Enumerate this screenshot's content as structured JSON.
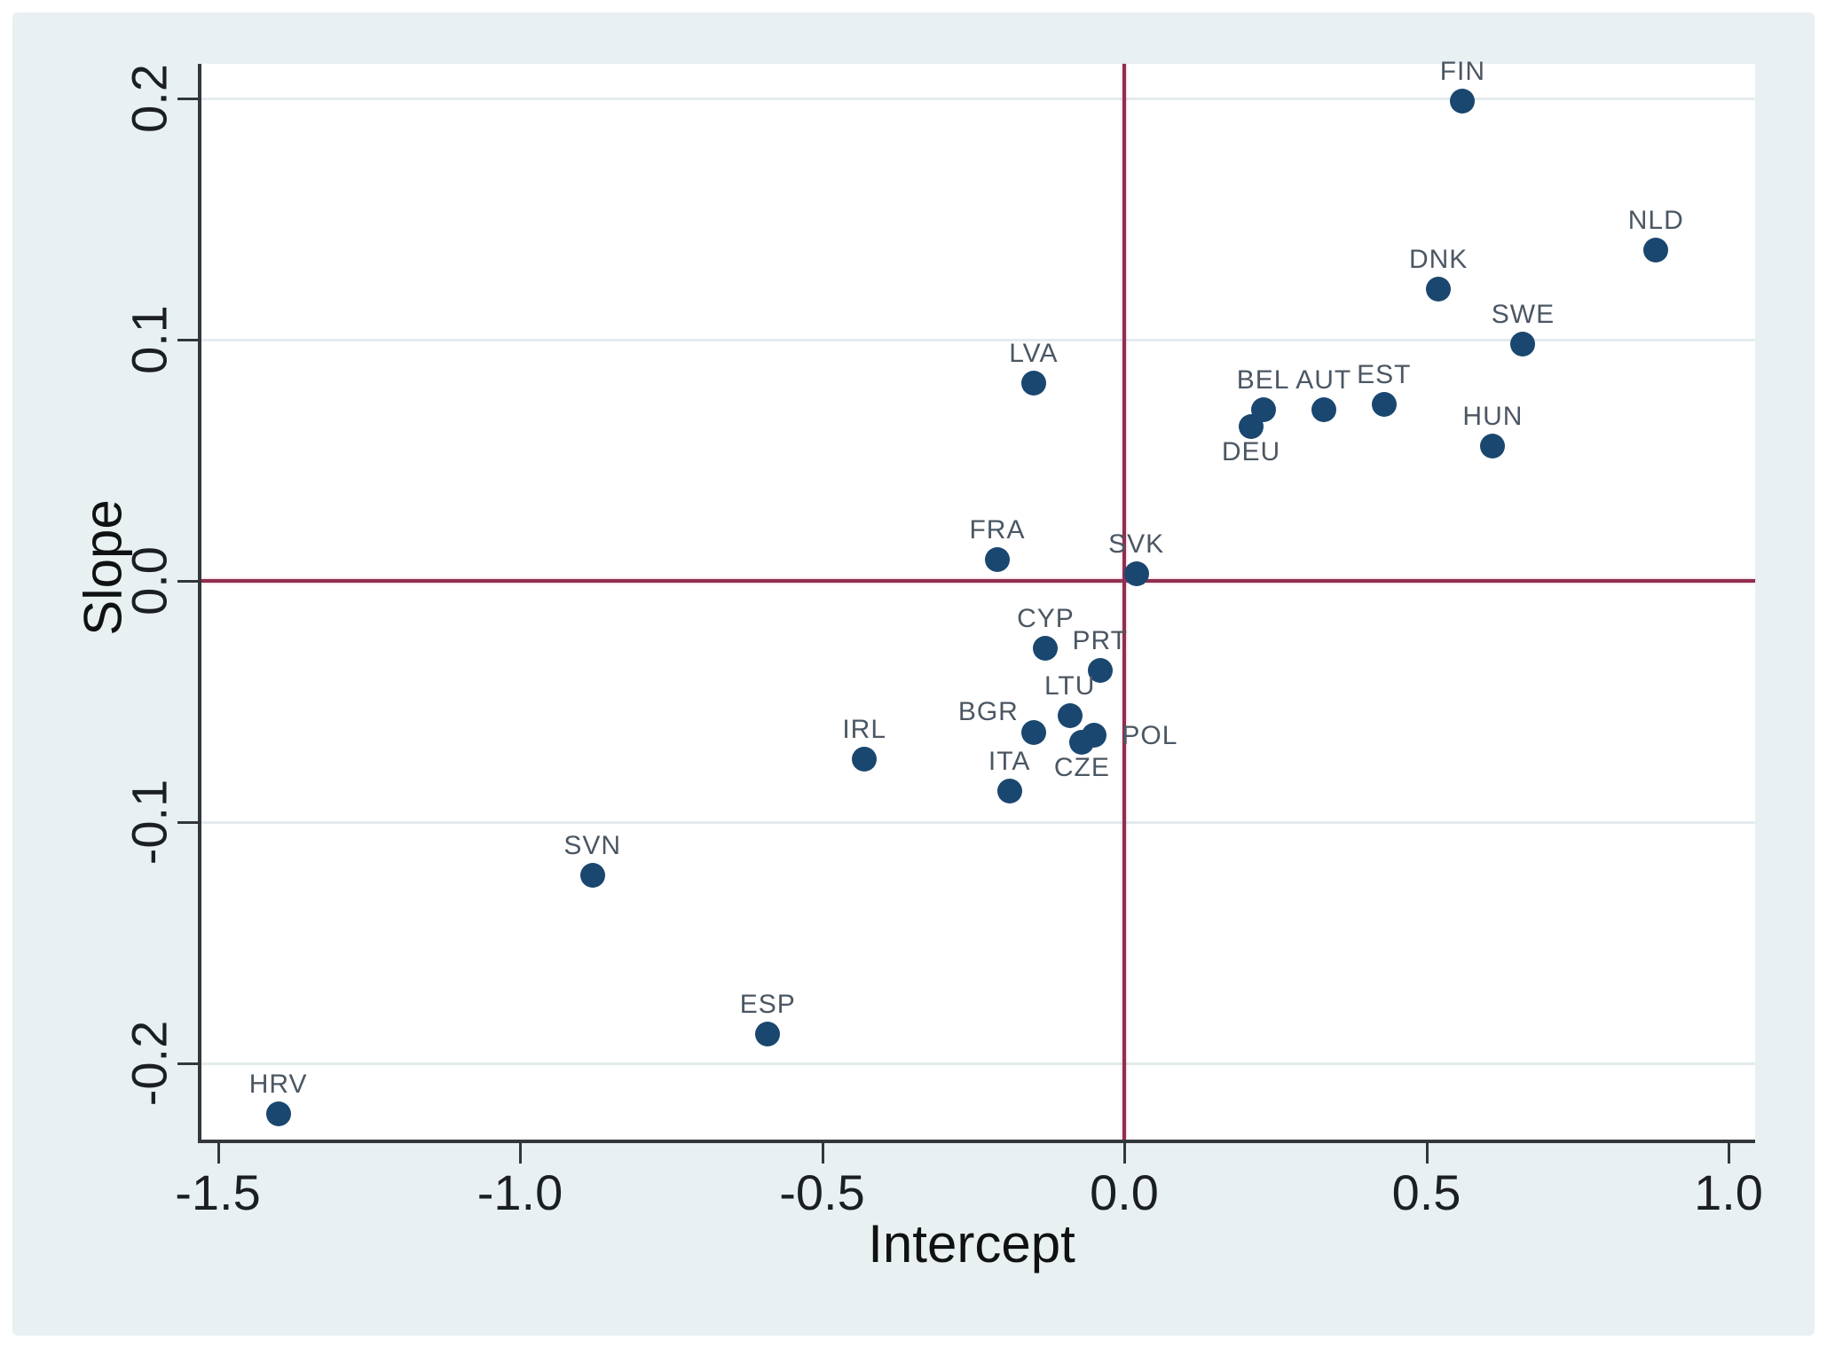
{
  "figure": {
    "colors": {
      "page_bg": "#ffffff",
      "panel_bg": "#e9f0f2",
      "plot_bg": "#ffffff",
      "gridline": "#e3ebee",
      "axis_line": "#32373b",
      "tick_label": "#1c1f22",
      "axis_title": "#0f1112",
      "marker": "#1a476f",
      "point_label": "#4b5763",
      "reference_line": "#8f2f4f"
    }
  },
  "chart_data": {
    "type": "scatter",
    "title": "",
    "xlabel": "Intercept",
    "ylabel": "Slope",
    "xlim": [
      -1.53,
      1.04
    ],
    "ylim": [
      -0.232,
      0.214
    ],
    "grid": "horizontal",
    "legend": "none",
    "reference_lines": {
      "x": 0.0,
      "y": 0.0
    },
    "x_ticks": [
      {
        "value": -1.5,
        "label": "-1.5"
      },
      {
        "value": -1.0,
        "label": "-1.0"
      },
      {
        "value": -0.5,
        "label": "-0.5"
      },
      {
        "value": 0.0,
        "label": "0.0"
      },
      {
        "value": 0.5,
        "label": "0.5"
      },
      {
        "value": 1.0,
        "label": "1.0"
      }
    ],
    "y_ticks": [
      {
        "value": 0.2,
        "label": "0.2"
      },
      {
        "value": 0.1,
        "label": "0.1"
      },
      {
        "value": 0.0,
        "label": "0.0"
      },
      {
        "value": -0.1,
        "label": "-0.1"
      },
      {
        "value": -0.2,
        "label": "-0.2"
      }
    ],
    "points": [
      {
        "code": "FIN",
        "intercept": 0.56,
        "slope": 0.199,
        "label_pos": "above"
      },
      {
        "code": "NLD",
        "intercept": 0.88,
        "slope": 0.137,
        "label_pos": "above"
      },
      {
        "code": "DNK",
        "intercept": 0.52,
        "slope": 0.121,
        "label_pos": "above"
      },
      {
        "code": "SWE",
        "intercept": 0.66,
        "slope": 0.098,
        "label_pos": "above"
      },
      {
        "code": "EST",
        "intercept": 0.43,
        "slope": 0.073,
        "label_pos": "above"
      },
      {
        "code": "AUT",
        "intercept": 0.33,
        "slope": 0.071,
        "label_pos": "above"
      },
      {
        "code": "BEL",
        "intercept": 0.23,
        "slope": 0.071,
        "label_pos": "above"
      },
      {
        "code": "DEU",
        "intercept": 0.21,
        "slope": 0.064,
        "label_pos": "below"
      },
      {
        "code": "HUN",
        "intercept": 0.61,
        "slope": 0.056,
        "label_pos": "above"
      },
      {
        "code": "LVA",
        "intercept": -0.15,
        "slope": 0.082,
        "label_pos": "above"
      },
      {
        "code": "FRA",
        "intercept": -0.21,
        "slope": 0.009,
        "label_pos": "above"
      },
      {
        "code": "SVK",
        "intercept": 0.02,
        "slope": 0.003,
        "label_pos": "above"
      },
      {
        "code": "CYP",
        "intercept": -0.13,
        "slope": -0.028,
        "label_pos": "above"
      },
      {
        "code": "PRT",
        "intercept": -0.04,
        "slope": -0.037,
        "label_pos": "above"
      },
      {
        "code": "LTU",
        "intercept": -0.09,
        "slope": -0.056,
        "label_pos": "above"
      },
      {
        "code": "BGR",
        "intercept": -0.15,
        "slope": -0.063,
        "label_pos": "left-above"
      },
      {
        "code": "POL",
        "intercept": -0.05,
        "slope": -0.064,
        "label_pos": "right"
      },
      {
        "code": "CZE",
        "intercept": -0.07,
        "slope": -0.067,
        "label_pos": "below"
      },
      {
        "code": "ITA",
        "intercept": -0.19,
        "slope": -0.087,
        "label_pos": "above"
      },
      {
        "code": "IRL",
        "intercept": -0.43,
        "slope": -0.074,
        "label_pos": "above"
      },
      {
        "code": "SVN",
        "intercept": -0.88,
        "slope": -0.122,
        "label_pos": "above"
      },
      {
        "code": "ESP",
        "intercept": -0.59,
        "slope": -0.188,
        "label_pos": "above"
      },
      {
        "code": "HRV",
        "intercept": -1.4,
        "slope": -0.221,
        "label_pos": "above"
      }
    ]
  }
}
